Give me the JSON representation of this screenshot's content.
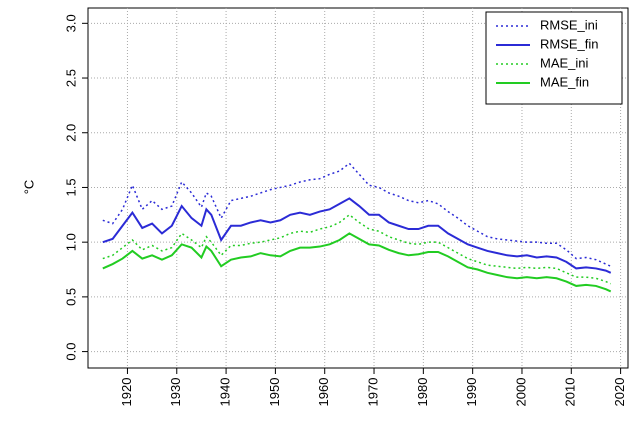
{
  "chart_data": {
    "type": "line",
    "y_label": "°C",
    "x": [
      1915,
      1917,
      1919,
      1921,
      1923,
      1925,
      1927,
      1929,
      1931,
      1933,
      1935,
      1936,
      1937,
      1939,
      1941,
      1943,
      1945,
      1947,
      1949,
      1951,
      1953,
      1955,
      1957,
      1959,
      1961,
      1963,
      1965,
      1967,
      1969,
      1971,
      1973,
      1975,
      1977,
      1979,
      1981,
      1983,
      1985,
      1987,
      1989,
      1991,
      1993,
      1995,
      1997,
      1999,
      2001,
      2003,
      2005,
      2007,
      2009,
      2011,
      2013,
      2015,
      2017,
      2018
    ],
    "series": [
      {
        "name": "RMSE_ini",
        "color": "#2b2bd6",
        "linestyle": "dotted",
        "values": [
          1.2,
          1.17,
          1.3,
          1.52,
          1.3,
          1.38,
          1.3,
          1.33,
          1.55,
          1.45,
          1.32,
          1.45,
          1.42,
          1.22,
          1.38,
          1.4,
          1.42,
          1.45,
          1.48,
          1.5,
          1.52,
          1.55,
          1.57,
          1.58,
          1.62,
          1.65,
          1.72,
          1.62,
          1.52,
          1.5,
          1.45,
          1.42,
          1.38,
          1.36,
          1.38,
          1.35,
          1.28,
          1.22,
          1.15,
          1.1,
          1.05,
          1.03,
          1.02,
          1.01,
          1.0,
          1.0,
          0.99,
          0.99,
          0.93,
          0.85,
          0.86,
          0.84,
          0.8,
          0.78
        ]
      },
      {
        "name": "RMSE_fin",
        "color": "#2b2bd6",
        "linestyle": "solid",
        "values": [
          1.0,
          1.03,
          1.15,
          1.27,
          1.13,
          1.17,
          1.08,
          1.15,
          1.33,
          1.22,
          1.15,
          1.3,
          1.25,
          1.02,
          1.15,
          1.15,
          1.18,
          1.2,
          1.18,
          1.2,
          1.25,
          1.27,
          1.25,
          1.28,
          1.3,
          1.35,
          1.4,
          1.33,
          1.25,
          1.25,
          1.18,
          1.15,
          1.12,
          1.12,
          1.15,
          1.15,
          1.08,
          1.03,
          0.98,
          0.95,
          0.92,
          0.9,
          0.88,
          0.87,
          0.88,
          0.86,
          0.87,
          0.86,
          0.82,
          0.76,
          0.77,
          0.76,
          0.74,
          0.72
        ]
      },
      {
        "name": "MAE_ini",
        "color": "#22cc22",
        "linestyle": "dotted",
        "values": [
          0.85,
          0.88,
          0.95,
          1.02,
          0.93,
          0.97,
          0.92,
          0.95,
          1.08,
          1.02,
          0.95,
          1.05,
          1.0,
          0.88,
          0.97,
          0.97,
          0.99,
          1.0,
          1.02,
          1.04,
          1.08,
          1.1,
          1.09,
          1.12,
          1.14,
          1.18,
          1.25,
          1.18,
          1.12,
          1.1,
          1.05,
          1.02,
          0.99,
          0.98,
          1.0,
          1.0,
          0.95,
          0.9,
          0.85,
          0.82,
          0.79,
          0.78,
          0.77,
          0.76,
          0.77,
          0.76,
          0.77,
          0.76,
          0.72,
          0.68,
          0.68,
          0.67,
          0.64,
          0.62
        ]
      },
      {
        "name": "MAE_fin",
        "color": "#22cc22",
        "linestyle": "solid",
        "values": [
          0.76,
          0.8,
          0.85,
          0.92,
          0.85,
          0.88,
          0.84,
          0.88,
          0.98,
          0.95,
          0.86,
          0.96,
          0.92,
          0.78,
          0.84,
          0.86,
          0.87,
          0.9,
          0.88,
          0.87,
          0.92,
          0.95,
          0.95,
          0.96,
          0.98,
          1.02,
          1.08,
          1.03,
          0.98,
          0.97,
          0.93,
          0.9,
          0.88,
          0.89,
          0.91,
          0.91,
          0.87,
          0.82,
          0.77,
          0.75,
          0.72,
          0.7,
          0.68,
          0.67,
          0.68,
          0.67,
          0.68,
          0.67,
          0.64,
          0.6,
          0.61,
          0.6,
          0.57,
          0.55
        ]
      }
    ],
    "xlim": [
      1912,
      2021.5
    ],
    "xticks": [
      1920,
      1930,
      1940,
      1950,
      1960,
      1970,
      1980,
      1990,
      2000,
      2010,
      2020
    ],
    "ylim": [
      -0.15,
      3.14
    ],
    "yticks": [
      {
        "value": 0,
        "label": "0.0"
      },
      0.5,
      {
        "value": 1,
        "label": "1.0"
      },
      1.5,
      {
        "value": 2,
        "label": "2.0"
      },
      2.5,
      {
        "value": 3,
        "label": "3.0"
      }
    ],
    "grid": true,
    "legend": "top-right"
  }
}
